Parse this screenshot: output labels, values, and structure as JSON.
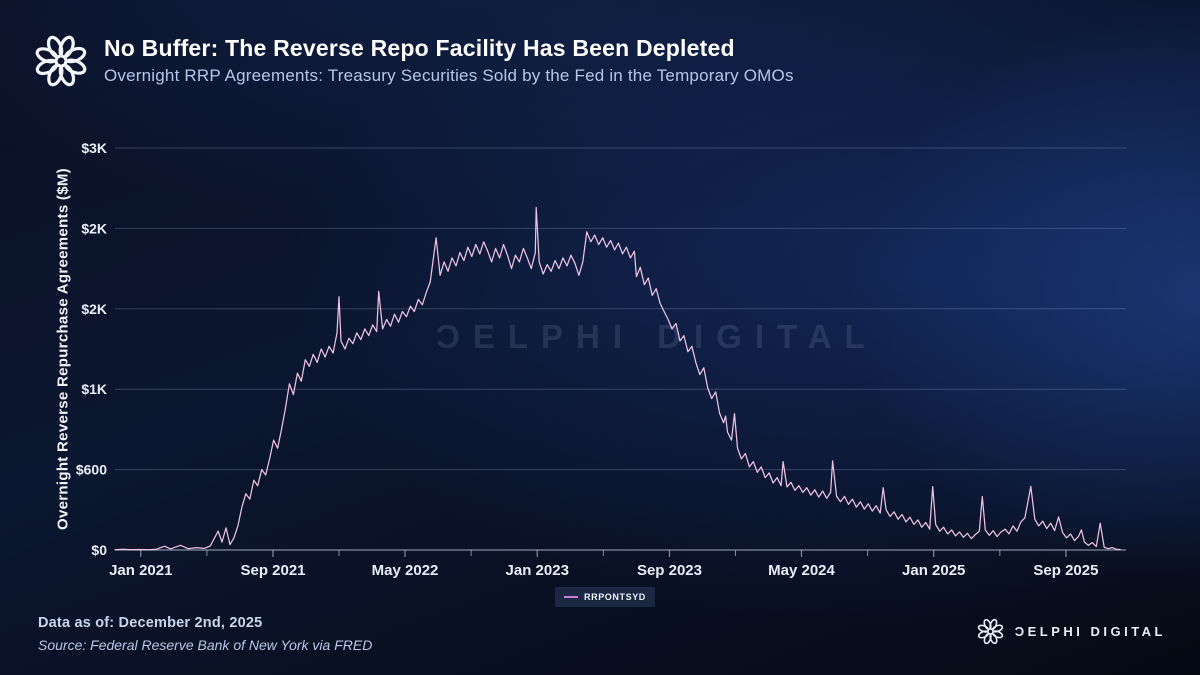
{
  "header": {
    "title": "No Buffer: The Reverse Repo Facility Has Been Depleted",
    "subtitle": "Overnight RRP Agreements: Treasury Securities Sold by the Fed in the Temporary OMOs"
  },
  "watermark": {
    "text": "ƆELPHI DIGITAL"
  },
  "legend": {
    "label": "RRPONTSYD",
    "swatch_color": "#c77fd6"
  },
  "footer": {
    "data_as_of": "Data as of: December 2nd, 2025",
    "source": "Source: Federal Reserve Bank of New York via FRED",
    "brand": "ƆELPHI DIGITAL"
  },
  "colors": {
    "line": "#eec2e2",
    "grid": "rgba(152,170,204,0.30)",
    "axis": "rgba(192,206,232,0.65)",
    "tick_text": "#e8edf6"
  },
  "chart_data": {
    "type": "line",
    "series_name": "RRPONTSYD",
    "title": "Overnight RRP Agreements: Treasury Securities Sold by the Fed in the Temporary OMOs",
    "xlabel": "",
    "ylabel": "Overnight Reverse Repurchase Agreements ($M)",
    "grid": "horizontal",
    "legend_position": "bottom-center",
    "x_range": [
      2020.87,
      2025.97
    ],
    "y_range": [
      0,
      3000
    ],
    "y_ticks": [
      {
        "label": "$3K",
        "value": 3000
      },
      {
        "label": "$2K",
        "value": 2400
      },
      {
        "label": "$2K",
        "value": 1800
      },
      {
        "label": "$1K",
        "value": 1200
      },
      {
        "label": "$600",
        "value": 600
      },
      {
        "label": "$0",
        "value": 0
      }
    ],
    "x_ticks": [
      {
        "label": "Jan 2021",
        "t": 2021.0
      },
      {
        "label": "Sep 2021",
        "t": 2021.667
      },
      {
        "label": "May 2022",
        "t": 2022.333
      },
      {
        "label": "Jan 2023",
        "t": 2023.0
      },
      {
        "label": "Sep 2023",
        "t": 2023.667
      },
      {
        "label": "May 2024",
        "t": 2024.333
      },
      {
        "label": "Jan 2025",
        "t": 2025.0
      },
      {
        "label": "Sep 2025",
        "t": 2025.667
      }
    ],
    "points": [
      [
        2020.87,
        2
      ],
      [
        2020.91,
        5
      ],
      [
        2020.95,
        3
      ],
      [
        2021.0,
        4
      ],
      [
        2021.04,
        2
      ],
      [
        2021.08,
        6
      ],
      [
        2021.12,
        28
      ],
      [
        2021.15,
        8
      ],
      [
        2021.2,
        35
      ],
      [
        2021.24,
        10
      ],
      [
        2021.28,
        18
      ],
      [
        2021.32,
        12
      ],
      [
        2021.35,
        30
      ],
      [
        2021.39,
        140
      ],
      [
        2021.41,
        60
      ],
      [
        2021.43,
        165
      ],
      [
        2021.45,
        40
      ],
      [
        2021.47,
        90
      ],
      [
        2021.49,
        180
      ],
      [
        2021.51,
        320
      ],
      [
        2021.53,
        420
      ],
      [
        2021.55,
        380
      ],
      [
        2021.57,
        520
      ],
      [
        2021.59,
        480
      ],
      [
        2021.61,
        600
      ],
      [
        2021.63,
        560
      ],
      [
        2021.65,
        680
      ],
      [
        2021.67,
        820
      ],
      [
        2021.69,
        760
      ],
      [
        2021.71,
        900
      ],
      [
        2021.73,
        1060
      ],
      [
        2021.75,
        1240
      ],
      [
        2021.77,
        1160
      ],
      [
        2021.79,
        1320
      ],
      [
        2021.81,
        1260
      ],
      [
        2021.83,
        1420
      ],
      [
        2021.85,
        1370
      ],
      [
        2021.87,
        1460
      ],
      [
        2021.89,
        1400
      ],
      [
        2021.91,
        1500
      ],
      [
        2021.93,
        1440
      ],
      [
        2021.95,
        1520
      ],
      [
        2021.97,
        1470
      ],
      [
        2021.99,
        1620
      ],
      [
        2022.0,
        1890
      ],
      [
        2022.01,
        1560
      ],
      [
        2022.03,
        1500
      ],
      [
        2022.05,
        1580
      ],
      [
        2022.07,
        1540
      ],
      [
        2022.09,
        1620
      ],
      [
        2022.11,
        1570
      ],
      [
        2022.13,
        1650
      ],
      [
        2022.15,
        1600
      ],
      [
        2022.17,
        1680
      ],
      [
        2022.19,
        1630
      ],
      [
        2022.2,
        1930
      ],
      [
        2022.22,
        1650
      ],
      [
        2022.24,
        1720
      ],
      [
        2022.26,
        1670
      ],
      [
        2022.28,
        1760
      ],
      [
        2022.3,
        1700
      ],
      [
        2022.32,
        1780
      ],
      [
        2022.34,
        1740
      ],
      [
        2022.36,
        1820
      ],
      [
        2022.38,
        1780
      ],
      [
        2022.4,
        1870
      ],
      [
        2022.42,
        1830
      ],
      [
        2022.44,
        1920
      ],
      [
        2022.46,
        2000
      ],
      [
        2022.49,
        2330
      ],
      [
        2022.51,
        2050
      ],
      [
        2022.53,
        2150
      ],
      [
        2022.55,
        2080
      ],
      [
        2022.57,
        2180
      ],
      [
        2022.59,
        2120
      ],
      [
        2022.61,
        2220
      ],
      [
        2022.63,
        2160
      ],
      [
        2022.65,
        2260
      ],
      [
        2022.67,
        2190
      ],
      [
        2022.69,
        2280
      ],
      [
        2022.71,
        2210
      ],
      [
        2022.73,
        2300
      ],
      [
        2022.75,
        2230
      ],
      [
        2022.77,
        2150
      ],
      [
        2022.79,
        2250
      ],
      [
        2022.81,
        2180
      ],
      [
        2022.83,
        2280
      ],
      [
        2022.85,
        2200
      ],
      [
        2022.87,
        2100
      ],
      [
        2022.89,
        2200
      ],
      [
        2022.91,
        2150
      ],
      [
        2022.93,
        2250
      ],
      [
        2022.95,
        2180
      ],
      [
        2022.97,
        2100
      ],
      [
        2022.99,
        2220
      ],
      [
        2022.995,
        2556
      ],
      [
        2023.01,
        2150
      ],
      [
        2023.03,
        2060
      ],
      [
        2023.05,
        2130
      ],
      [
        2023.07,
        2080
      ],
      [
        2023.09,
        2160
      ],
      [
        2023.11,
        2100
      ],
      [
        2023.13,
        2180
      ],
      [
        2023.15,
        2120
      ],
      [
        2023.17,
        2200
      ],
      [
        2023.19,
        2140
      ],
      [
        2023.21,
        2050
      ],
      [
        2023.23,
        2150
      ],
      [
        2023.25,
        2375
      ],
      [
        2023.27,
        2300
      ],
      [
        2023.29,
        2350
      ],
      [
        2023.31,
        2280
      ],
      [
        2023.33,
        2330
      ],
      [
        2023.35,
        2260
      ],
      [
        2023.37,
        2310
      ],
      [
        2023.39,
        2240
      ],
      [
        2023.41,
        2290
      ],
      [
        2023.43,
        2210
      ],
      [
        2023.45,
        2260
      ],
      [
        2023.47,
        2180
      ],
      [
        2023.49,
        2230
      ],
      [
        2023.5,
        2040
      ],
      [
        2023.52,
        2110
      ],
      [
        2023.54,
        1980
      ],
      [
        2023.56,
        2030
      ],
      [
        2023.58,
        1900
      ],
      [
        2023.6,
        1950
      ],
      [
        2023.62,
        1840
      ],
      [
        2023.64,
        1780
      ],
      [
        2023.66,
        1720
      ],
      [
        2023.68,
        1650
      ],
      [
        2023.7,
        1690
      ],
      [
        2023.72,
        1560
      ],
      [
        2023.74,
        1600
      ],
      [
        2023.76,
        1480
      ],
      [
        2023.78,
        1520
      ],
      [
        2023.8,
        1400
      ],
      [
        2023.82,
        1310
      ],
      [
        2023.84,
        1360
      ],
      [
        2023.86,
        1210
      ],
      [
        2023.88,
        1130
      ],
      [
        2023.9,
        1180
      ],
      [
        2023.92,
        1020
      ],
      [
        2023.94,
        950
      ],
      [
        2023.95,
        1000
      ],
      [
        2023.96,
        880
      ],
      [
        2023.98,
        820
      ],
      [
        2023.995,
        1018
      ],
      [
        2024.01,
        760
      ],
      [
        2024.03,
        680
      ],
      [
        2024.05,
        720
      ],
      [
        2024.07,
        620
      ],
      [
        2024.09,
        660
      ],
      [
        2024.11,
        580
      ],
      [
        2024.13,
        620
      ],
      [
        2024.15,
        540
      ],
      [
        2024.17,
        575
      ],
      [
        2024.19,
        500
      ],
      [
        2024.21,
        540
      ],
      [
        2024.23,
        480
      ],
      [
        2024.24,
        660
      ],
      [
        2024.26,
        470
      ],
      [
        2024.28,
        505
      ],
      [
        2024.3,
        445
      ],
      [
        2024.32,
        480
      ],
      [
        2024.34,
        430
      ],
      [
        2024.36,
        465
      ],
      [
        2024.38,
        410
      ],
      [
        2024.4,
        450
      ],
      [
        2024.42,
        395
      ],
      [
        2024.44,
        440
      ],
      [
        2024.46,
        385
      ],
      [
        2024.48,
        430
      ],
      [
        2024.49,
        665
      ],
      [
        2024.51,
        400
      ],
      [
        2024.53,
        360
      ],
      [
        2024.55,
        400
      ],
      [
        2024.57,
        340
      ],
      [
        2024.59,
        380
      ],
      [
        2024.61,
        320
      ],
      [
        2024.63,
        360
      ],
      [
        2024.65,
        305
      ],
      [
        2024.67,
        345
      ],
      [
        2024.69,
        290
      ],
      [
        2024.71,
        330
      ],
      [
        2024.73,
        275
      ],
      [
        2024.745,
        465
      ],
      [
        2024.76,
        300
      ],
      [
        2024.78,
        250
      ],
      [
        2024.8,
        285
      ],
      [
        2024.82,
        230
      ],
      [
        2024.84,
        265
      ],
      [
        2024.86,
        210
      ],
      [
        2024.88,
        245
      ],
      [
        2024.9,
        190
      ],
      [
        2024.92,
        225
      ],
      [
        2024.94,
        170
      ],
      [
        2024.96,
        205
      ],
      [
        2024.98,
        155
      ],
      [
        2024.995,
        473
      ],
      [
        2025.01,
        190
      ],
      [
        2025.03,
        140
      ],
      [
        2025.05,
        170
      ],
      [
        2025.07,
        120
      ],
      [
        2025.09,
        150
      ],
      [
        2025.11,
        105
      ],
      [
        2025.13,
        135
      ],
      [
        2025.15,
        95
      ],
      [
        2025.17,
        125
      ],
      [
        2025.19,
        85
      ],
      [
        2025.21,
        115
      ],
      [
        2025.23,
        140
      ],
      [
        2025.245,
        399
      ],
      [
        2025.26,
        150
      ],
      [
        2025.28,
        110
      ],
      [
        2025.3,
        145
      ],
      [
        2025.32,
        100
      ],
      [
        2025.34,
        135
      ],
      [
        2025.36,
        155
      ],
      [
        2025.38,
        120
      ],
      [
        2025.4,
        180
      ],
      [
        2025.42,
        140
      ],
      [
        2025.44,
        210
      ],
      [
        2025.46,
        240
      ],
      [
        2025.49,
        475
      ],
      [
        2025.51,
        230
      ],
      [
        2025.53,
        180
      ],
      [
        2025.55,
        215
      ],
      [
        2025.57,
        160
      ],
      [
        2025.59,
        200
      ],
      [
        2025.61,
        145
      ],
      [
        2025.63,
        246
      ],
      [
        2025.65,
        130
      ],
      [
        2025.67,
        90
      ],
      [
        2025.69,
        120
      ],
      [
        2025.71,
        70
      ],
      [
        2025.73,
        100
      ],
      [
        2025.745,
        150
      ],
      [
        2025.76,
        60
      ],
      [
        2025.78,
        35
      ],
      [
        2025.8,
        55
      ],
      [
        2025.82,
        25
      ],
      [
        2025.84,
        200
      ],
      [
        2025.86,
        20
      ],
      [
        2025.88,
        10
      ],
      [
        2025.9,
        18
      ],
      [
        2025.92,
        6
      ],
      [
        2025.94,
        3
      ]
    ]
  }
}
